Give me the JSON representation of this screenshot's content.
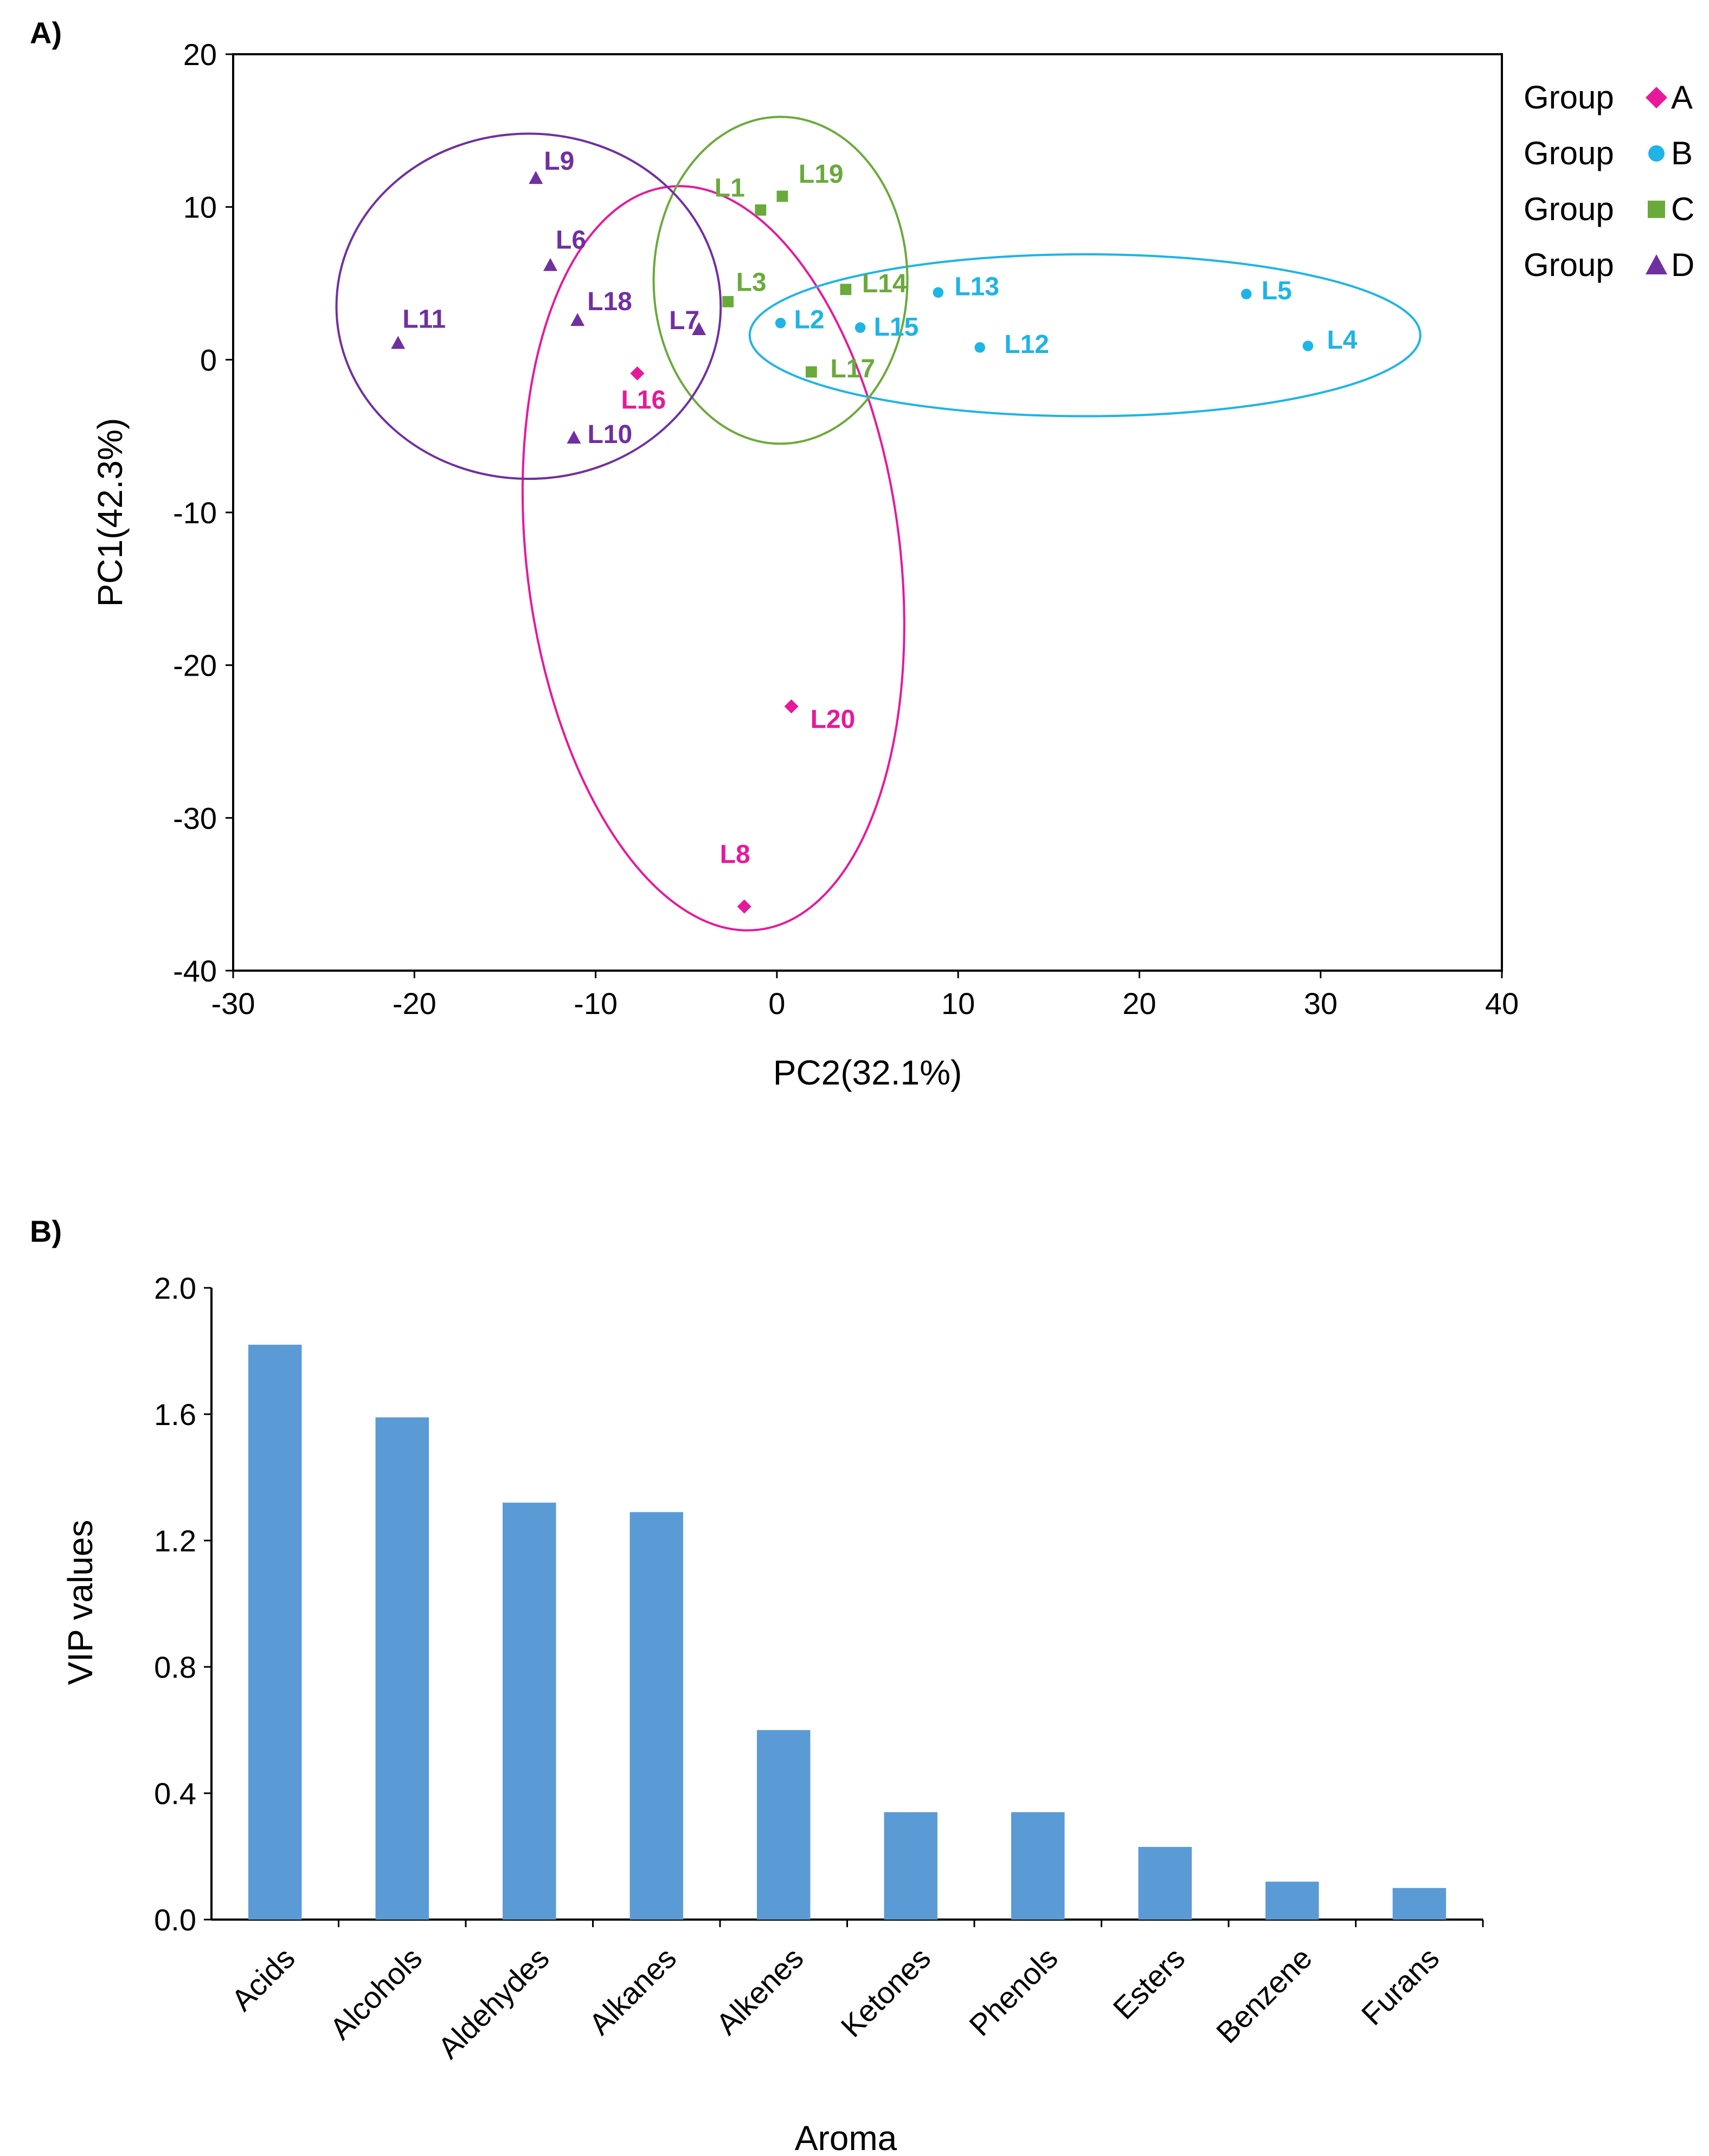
{
  "chart_data": [
    {
      "panel": "A)",
      "type": "scatter",
      "xlabel": "PC2(32.1%)",
      "ylabel": "PC1(42.3%)",
      "xlim": [
        -30,
        40
      ],
      "ylim": [
        -40,
        20
      ],
      "xticks": [
        -30,
        -20,
        -10,
        0,
        10,
        20,
        30,
        40
      ],
      "yticks": [
        -40,
        -30,
        -20,
        -10,
        0,
        10,
        20
      ],
      "groups": [
        {
          "key": "A",
          "legend_word": "Group",
          "legend_letter": "A",
          "color": "#e6199b",
          "marker": "diamond",
          "points": [
            {
              "label": "L16",
              "x": -7.7,
              "y": -0.9
            },
            {
              "label": "L20",
              "x": 0.8,
              "y": -22.7
            },
            {
              "label": "L8",
              "x": -1.8,
              "y": -35.8
            }
          ],
          "ellipse": {
            "cx": -3.5,
            "cy": -13.0,
            "rx": 10.3,
            "ry": 24.5,
            "angle_deg": -7
          }
        },
        {
          "key": "B",
          "legend_word": "Group",
          "legend_letter": "B",
          "color": "#1eb4e6",
          "marker": "circle",
          "points": [
            {
              "label": "L2",
              "x": 0.2,
              "y": 2.4
            },
            {
              "label": "L15",
              "x": 4.6,
              "y": 2.1
            },
            {
              "label": "L13",
              "x": 8.9,
              "y": 4.4
            },
            {
              "label": "L12",
              "x": 11.2,
              "y": 0.8
            },
            {
              "label": "L5",
              "x": 25.9,
              "y": 4.3
            },
            {
              "label": "L4",
              "x": 29.3,
              "y": 0.9
            }
          ],
          "ellipse": {
            "cx": 17.0,
            "cy": 1.6,
            "rx": 18.5,
            "ry": 5.3,
            "angle_deg": 0
          }
        },
        {
          "key": "C",
          "legend_word": "Group",
          "legend_letter": "C",
          "color": "#6aaa3a",
          "marker": "square",
          "points": [
            {
              "label": "L1",
              "x": -0.9,
              "y": 9.8
            },
            {
              "label": "L19",
              "x": 0.3,
              "y": 10.7
            },
            {
              "label": "L3",
              "x": -2.7,
              "y": 3.8
            },
            {
              "label": "L14",
              "x": 3.8,
              "y": 4.6
            },
            {
              "label": "L17",
              "x": 1.9,
              "y": -0.8
            }
          ],
          "ellipse": {
            "cx": 0.2,
            "cy": 5.2,
            "rx": 7.0,
            "ry": 10.7,
            "angle_deg": 0
          }
        },
        {
          "key": "D",
          "legend_word": "Group",
          "legend_letter": "D",
          "color": "#7030a0",
          "marker": "triangle",
          "points": [
            {
              "label": "L9",
              "x": -13.3,
              "y": 11.9
            },
            {
              "label": "L6",
              "x": -12.5,
              "y": 6.2
            },
            {
              "label": "L18",
              "x": -11.0,
              "y": 2.6
            },
            {
              "label": "L7",
              "x": -4.3,
              "y": 2.0
            },
            {
              "label": "L11",
              "x": -20.9,
              "y": 1.1
            },
            {
              "label": "L10",
              "x": -11.2,
              "y": -5.1
            }
          ],
          "ellipse": {
            "cx": -13.7,
            "cy": 3.5,
            "rx": 10.6,
            "ry": 11.3,
            "angle_deg": 0
          }
        }
      ]
    },
    {
      "panel": "B)",
      "type": "bar",
      "xlabel": "Aroma",
      "ylabel": "VIP values",
      "ylim": [
        0.0,
        2.0
      ],
      "yticks": [
        "0.0",
        "0.4",
        "0.8",
        "1.2",
        "1.6",
        "2.0"
      ],
      "bar_color": "#5b9bd5",
      "categories": [
        "Acids",
        "Alcohols",
        "Aldehydes",
        "Alkanes",
        "Alkenes",
        "Ketones",
        "Phenols",
        "Esters",
        "Benzene",
        "Furans"
      ],
      "values": [
        1.82,
        1.59,
        1.32,
        1.29,
        0.6,
        0.34,
        0.34,
        0.23,
        0.12,
        0.1
      ]
    }
  ]
}
